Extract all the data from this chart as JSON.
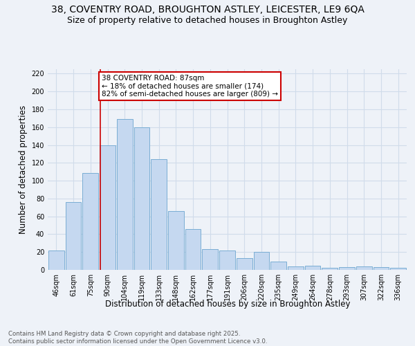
{
  "title1": "38, COVENTRY ROAD, BROUGHTON ASTLEY, LEICESTER, LE9 6QA",
  "title2": "Size of property relative to detached houses in Broughton Astley",
  "xlabel": "Distribution of detached houses by size in Broughton Astley",
  "ylabel": "Number of detached properties",
  "categories": [
    "46sqm",
    "61sqm",
    "75sqm",
    "90sqm",
    "104sqm",
    "119sqm",
    "133sqm",
    "148sqm",
    "162sqm",
    "177sqm",
    "191sqm",
    "206sqm",
    "220sqm",
    "235sqm",
    "249sqm",
    "264sqm",
    "278sqm",
    "293sqm",
    "307sqm",
    "322sqm",
    "336sqm"
  ],
  "values": [
    22,
    76,
    109,
    140,
    169,
    160,
    124,
    66,
    46,
    23,
    22,
    13,
    20,
    9,
    4,
    5,
    2,
    3,
    4,
    3,
    2
  ],
  "bar_color": "#c5d8f0",
  "bar_edge_color": "#7aadd4",
  "red_line_x": 2.575,
  "annotation_text": "38 COVENTRY ROAD: 87sqm\n← 18% of detached houses are smaller (174)\n82% of semi-detached houses are larger (809) →",
  "annotation_box_color": "#ffffff",
  "annotation_box_edge_color": "#cc0000",
  "ylim": [
    0,
    225
  ],
  "yticks": [
    0,
    20,
    40,
    60,
    80,
    100,
    120,
    140,
    160,
    180,
    200,
    220
  ],
  "background_color": "#eef2f8",
  "grid_color": "#d0dcea",
  "footer_text": "Contains HM Land Registry data © Crown copyright and database right 2025.\nContains public sector information licensed under the Open Government Licence v3.0.",
  "title_fontsize": 10,
  "subtitle_fontsize": 9,
  "tick_fontsize": 7,
  "ylabel_fontsize": 8.5,
  "xlabel_fontsize": 8.5,
  "ann_fontsize": 7.5
}
